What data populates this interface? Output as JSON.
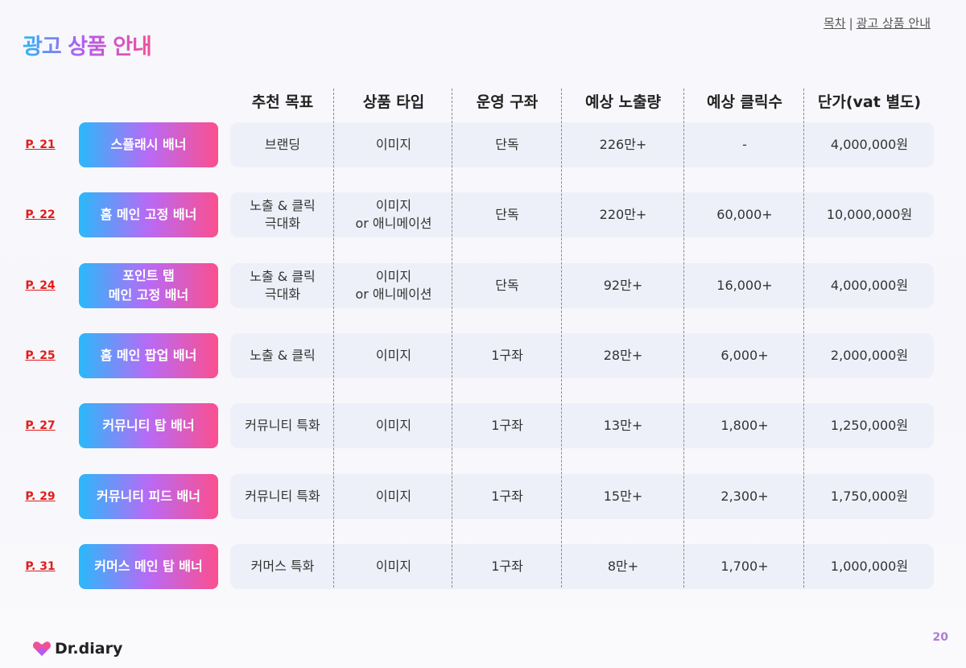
{
  "title": "광고 상품 안내",
  "breadcrumb": {
    "toc": "목차",
    "separator": "|",
    "current": "광고 상품 안내"
  },
  "columns": [
    "추천 목표",
    "상품 타입",
    "운영 구좌",
    "예상 노출량",
    "예상 클릭수",
    "단가(vat 별도)"
  ],
  "rows": [
    {
      "page": "P. 21",
      "product": "스플래시 배너",
      "goal": "브랜딩",
      "type": "이미지",
      "slot": "단독",
      "impressions": "226만+",
      "clicks": "-",
      "price": "4,000,000원"
    },
    {
      "page": "P. 22",
      "product": "홈 메인 고정 배너",
      "goal": "노출 & 클릭\n극대화",
      "type": "이미지\nor 애니메이션",
      "slot": "단독",
      "impressions": "220만+",
      "clicks": "60,000+",
      "price": "10,000,000원"
    },
    {
      "page": "P. 24",
      "product": "포인트 탭\n메인 고정 배너",
      "goal": "노출 & 클릭\n극대화",
      "type": "이미지\nor 애니메이션",
      "slot": "단독",
      "impressions": "92만+",
      "clicks": "16,000+",
      "price": "4,000,000원"
    },
    {
      "page": "P. 25",
      "product": "홈 메인 팝업 배너",
      "goal": "노출 & 클릭",
      "type": "이미지",
      "slot": "1구좌",
      "impressions": "28만+",
      "clicks": "6,000+",
      "price": "2,000,000원"
    },
    {
      "page": "P. 27",
      "product": "커뮤니티 탑 배너",
      "goal": "커뮤니티 특화",
      "type": "이미지",
      "slot": "1구좌",
      "impressions": "13만+",
      "clicks": "1,800+",
      "price": "1,250,000원"
    },
    {
      "page": "P. 29",
      "product": "커뮤니티 피드 배너",
      "goal": "커뮤니티 특화",
      "type": "이미지",
      "slot": "1구좌",
      "impressions": "15만+",
      "clicks": "2,300+",
      "price": "1,750,000원"
    },
    {
      "page": "P. 31",
      "product": "커머스 메인 탑 배너",
      "goal": "커머스 특화",
      "type": "이미지",
      "slot": "1구좌",
      "impressions": "8만+",
      "clicks": "1,700+",
      "price": "1,000,000원"
    }
  ],
  "footer": {
    "logo_text": "Dr.diary",
    "page_number": "20"
  },
  "colors": {
    "accent_blue": "#2ab9fa",
    "accent_purple": "#b86af5",
    "accent_pink": "#fb4f8e",
    "link_red": "#e21b1b"
  }
}
